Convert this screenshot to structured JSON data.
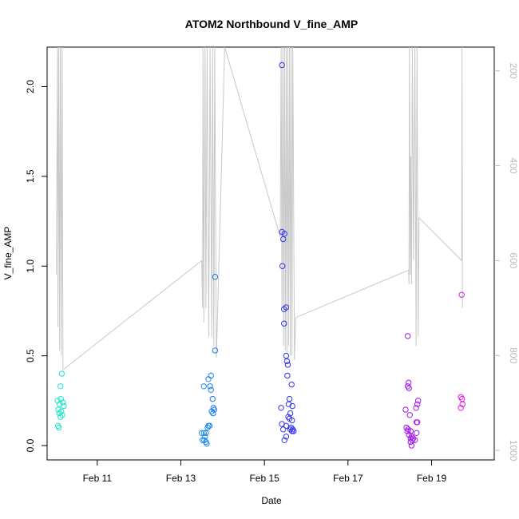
{
  "chart_data": {
    "type": "scatter",
    "title": "ATOM2 Northbound V_fine_AMP",
    "xlabel": "Date",
    "ylabel": "V_fine_AMP",
    "x_unit": "days (Feb)",
    "xlim": [
      9.8,
      20.5
    ],
    "ylim": [
      -0.08,
      2.22
    ],
    "x_ticks": [
      {
        "value": 11,
        "label": "Feb 11"
      },
      {
        "value": 13,
        "label": "Feb 13"
      },
      {
        "value": 15,
        "label": "Feb 15"
      },
      {
        "value": 17,
        "label": "Feb 17"
      },
      {
        "value": 19,
        "label": "Feb 19"
      }
    ],
    "y_ticks": [
      {
        "value": 0.0,
        "label": "0.0"
      },
      {
        "value": 0.5,
        "label": "0.5"
      },
      {
        "value": 1.0,
        "label": "1.0"
      },
      {
        "value": 1.5,
        "label": "1.5"
      },
      {
        "value": 2.0,
        "label": "2.0"
      }
    ],
    "right_axis": {
      "lim": [
        1020,
        150
      ],
      "ticks": [
        {
          "value": 200,
          "label": "200"
        },
        {
          "value": 400,
          "label": "400"
        },
        {
          "value": 600,
          "label": "600"
        },
        {
          "value": 800,
          "label": "800"
        },
        {
          "value": 1000,
          "label": "1000"
        }
      ],
      "color": "#bbbbbb"
    },
    "depth_line_color": "#c8c8c8",
    "point_colors": [
      "#1ee8c8",
      "#18c8e8",
      "#1e3ef0",
      "#6a18f0",
      "#e018e8"
    ],
    "points": [
      {
        "x": 10.15,
        "y": 0.4
      },
      {
        "x": 10.12,
        "y": 0.33
      },
      {
        "x": 10.13,
        "y": 0.26
      },
      {
        "x": 10.05,
        "y": 0.25
      },
      {
        "x": 10.18,
        "y": 0.24
      },
      {
        "x": 10.1,
        "y": 0.23
      },
      {
        "x": 10.2,
        "y": 0.22
      },
      {
        "x": 10.07,
        "y": 0.2
      },
      {
        "x": 10.14,
        "y": 0.19
      },
      {
        "x": 10.09,
        "y": 0.18
      },
      {
        "x": 10.16,
        "y": 0.17
      },
      {
        "x": 10.12,
        "y": 0.16
      },
      {
        "x": 10.06,
        "y": 0.11
      },
      {
        "x": 10.08,
        "y": 0.1
      },
      {
        "x": 13.82,
        "y": 0.94
      },
      {
        "x": 13.82,
        "y": 0.53
      },
      {
        "x": 13.72,
        "y": 0.39
      },
      {
        "x": 13.66,
        "y": 0.37
      },
      {
        "x": 13.55,
        "y": 0.33
      },
      {
        "x": 13.7,
        "y": 0.33
      },
      {
        "x": 13.72,
        "y": 0.31
      },
      {
        "x": 13.76,
        "y": 0.26
      },
      {
        "x": 13.78,
        "y": 0.21
      },
      {
        "x": 13.8,
        "y": 0.2
      },
      {
        "x": 13.74,
        "y": 0.19
      },
      {
        "x": 13.77,
        "y": 0.18
      },
      {
        "x": 13.66,
        "y": 0.11
      },
      {
        "x": 13.69,
        "y": 0.11
      },
      {
        "x": 13.64,
        "y": 0.1
      },
      {
        "x": 13.55,
        "y": 0.07
      },
      {
        "x": 13.6,
        "y": 0.07
      },
      {
        "x": 13.5,
        "y": 0.07
      },
      {
        "x": 13.58,
        "y": 0.05
      },
      {
        "x": 13.52,
        "y": 0.03
      },
      {
        "x": 13.56,
        "y": 0.03
      },
      {
        "x": 13.6,
        "y": 0.02
      },
      {
        "x": 13.62,
        "y": 0.01
      },
      {
        "x": 15.42,
        "y": 2.12
      },
      {
        "x": 15.42,
        "y": 1.19
      },
      {
        "x": 15.48,
        "y": 1.18
      },
      {
        "x": 15.45,
        "y": 1.15
      },
      {
        "x": 15.43,
        "y": 1.0
      },
      {
        "x": 15.52,
        "y": 0.77
      },
      {
        "x": 15.47,
        "y": 0.76
      },
      {
        "x": 15.47,
        "y": 0.68
      },
      {
        "x": 15.52,
        "y": 0.5
      },
      {
        "x": 15.54,
        "y": 0.47
      },
      {
        "x": 15.56,
        "y": 0.45
      },
      {
        "x": 15.55,
        "y": 0.39
      },
      {
        "x": 15.65,
        "y": 0.34
      },
      {
        "x": 15.6,
        "y": 0.26
      },
      {
        "x": 15.58,
        "y": 0.23
      },
      {
        "x": 15.67,
        "y": 0.22
      },
      {
        "x": 15.4,
        "y": 0.21
      },
      {
        "x": 15.62,
        "y": 0.18
      },
      {
        "x": 15.57,
        "y": 0.16
      },
      {
        "x": 15.6,
        "y": 0.15
      },
      {
        "x": 15.66,
        "y": 0.14
      },
      {
        "x": 15.42,
        "y": 0.12
      },
      {
        "x": 15.52,
        "y": 0.11
      },
      {
        "x": 15.64,
        "y": 0.1
      },
      {
        "x": 15.62,
        "y": 0.09
      },
      {
        "x": 15.68,
        "y": 0.09
      },
      {
        "x": 15.45,
        "y": 0.09
      },
      {
        "x": 15.66,
        "y": 0.08
      },
      {
        "x": 15.7,
        "y": 0.08
      },
      {
        "x": 15.52,
        "y": 0.05
      },
      {
        "x": 15.48,
        "y": 0.03
      },
      {
        "x": 18.43,
        "y": 0.61
      },
      {
        "x": 18.45,
        "y": 0.35
      },
      {
        "x": 18.43,
        "y": 0.33
      },
      {
        "x": 18.46,
        "y": 0.32
      },
      {
        "x": 18.68,
        "y": 0.25
      },
      {
        "x": 18.66,
        "y": 0.23
      },
      {
        "x": 18.63,
        "y": 0.21
      },
      {
        "x": 18.38,
        "y": 0.2
      },
      {
        "x": 18.48,
        "y": 0.17
      },
      {
        "x": 18.64,
        "y": 0.13
      },
      {
        "x": 18.66,
        "y": 0.13
      },
      {
        "x": 18.4,
        "y": 0.1
      },
      {
        "x": 18.44,
        "y": 0.09
      },
      {
        "x": 18.5,
        "y": 0.08
      },
      {
        "x": 18.42,
        "y": 0.08
      },
      {
        "x": 18.64,
        "y": 0.07
      },
      {
        "x": 18.46,
        "y": 0.06
      },
      {
        "x": 18.52,
        "y": 0.05
      },
      {
        "x": 18.5,
        "y": 0.04
      },
      {
        "x": 18.56,
        "y": 0.04
      },
      {
        "x": 18.54,
        "y": 0.03
      },
      {
        "x": 18.6,
        "y": 0.03
      },
      {
        "x": 18.5,
        "y": 0.02
      },
      {
        "x": 18.52,
        "y": 0.0
      },
      {
        "x": 19.72,
        "y": 0.84
      },
      {
        "x": 19.7,
        "y": 0.27
      },
      {
        "x": 19.73,
        "y": 0.26
      },
      {
        "x": 19.74,
        "y": 0.23
      },
      {
        "x": 19.7,
        "y": 0.21
      }
    ],
    "depth_series": [
      {
        "x": 10.02,
        "y": 630
      },
      {
        "x": 10.05,
        "y": 150
      },
      {
        "x": 10.06,
        "y": 740
      },
      {
        "x": 10.08,
        "y": 150
      },
      {
        "x": 10.1,
        "y": 790
      },
      {
        "x": 10.12,
        "y": 150
      },
      {
        "x": 10.14,
        "y": 800
      },
      {
        "x": 10.16,
        "y": 150
      },
      {
        "x": 10.18,
        "y": 830
      },
      {
        "x": 13.5,
        "y": 600
      },
      {
        "x": 13.52,
        "y": 700
      },
      {
        "x": 13.53,
        "y": 150
      },
      {
        "x": 13.55,
        "y": 730
      },
      {
        "x": 13.58,
        "y": 150
      },
      {
        "x": 13.6,
        "y": 700
      },
      {
        "x": 13.63,
        "y": 150
      },
      {
        "x": 13.67,
        "y": 760
      },
      {
        "x": 13.7,
        "y": 150
      },
      {
        "x": 13.74,
        "y": 760
      },
      {
        "x": 13.76,
        "y": 150
      },
      {
        "x": 13.79,
        "y": 780
      },
      {
        "x": 13.81,
        "y": 150
      },
      {
        "x": 13.85,
        "y": 805
      },
      {
        "x": 14.05,
        "y": 150
      },
      {
        "x": 15.38,
        "y": 550
      },
      {
        "x": 15.4,
        "y": 150
      },
      {
        "x": 15.42,
        "y": 700
      },
      {
        "x": 15.44,
        "y": 150
      },
      {
        "x": 15.46,
        "y": 780
      },
      {
        "x": 15.48,
        "y": 150
      },
      {
        "x": 15.5,
        "y": 790
      },
      {
        "x": 15.52,
        "y": 150
      },
      {
        "x": 15.54,
        "y": 795
      },
      {
        "x": 15.56,
        "y": 150
      },
      {
        "x": 15.58,
        "y": 780
      },
      {
        "x": 15.6,
        "y": 150
      },
      {
        "x": 15.62,
        "y": 800
      },
      {
        "x": 15.64,
        "y": 150
      },
      {
        "x": 15.66,
        "y": 800
      },
      {
        "x": 15.68,
        "y": 150
      },
      {
        "x": 15.72,
        "y": 810
      },
      {
        "x": 15.75,
        "y": 720
      },
      {
        "x": 18.45,
        "y": 620
      },
      {
        "x": 18.46,
        "y": 650
      },
      {
        "x": 18.47,
        "y": 150
      },
      {
        "x": 18.49,
        "y": 630
      },
      {
        "x": 18.5,
        "y": 380
      },
      {
        "x": 18.52,
        "y": 650
      },
      {
        "x": 18.54,
        "y": 150
      },
      {
        "x": 18.57,
        "y": 600
      },
      {
        "x": 18.6,
        "y": 150
      },
      {
        "x": 18.63,
        "y": 780
      },
      {
        "x": 18.65,
        "y": 150
      },
      {
        "x": 18.68,
        "y": 760
      },
      {
        "x": 18.7,
        "y": 510
      },
      {
        "x": 19.72,
        "y": 600
      },
      {
        "x": 19.73,
        "y": 150
      },
      {
        "x": 19.74,
        "y": 700
      }
    ]
  }
}
